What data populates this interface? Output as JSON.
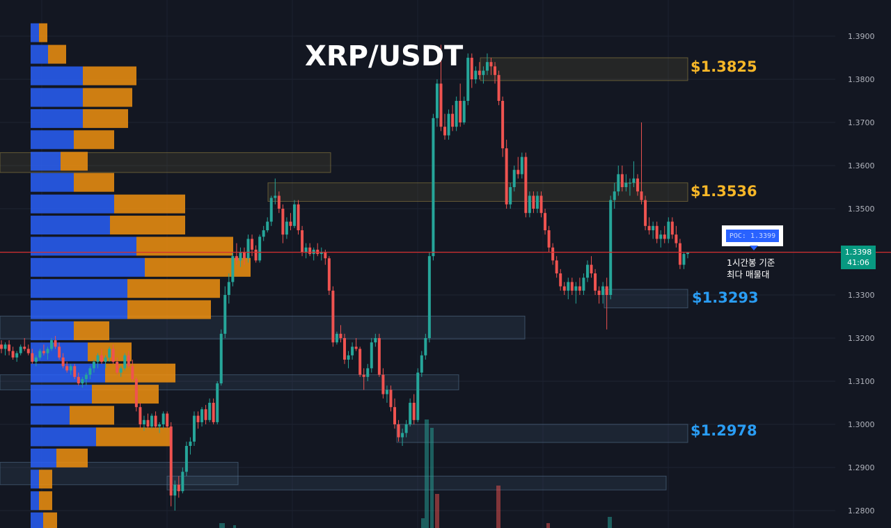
{
  "title": "XRP/USDT",
  "colors": {
    "background": "#131722",
    "bull": "#26a69a",
    "bear": "#ef5350",
    "poc_line": "#d32f2f",
    "vp_buy": "#2962ff",
    "vp_sell": "#f0900f",
    "gold_label": "#f7b728",
    "blue_label": "#2a9df4"
  },
  "level_labels": [
    {
      "text": "$1.3825",
      "price": 1.3825,
      "color": "gold"
    },
    {
      "text": "$1.3536",
      "price": 1.3536,
      "color": "gold"
    },
    {
      "text": "$1.3293",
      "price": 1.3293,
      "color": "blue"
    },
    {
      "text": "$1.2978",
      "price": 1.2978,
      "color": "blue"
    }
  ],
  "poc": {
    "label": "POC: 1.3399",
    "note_line1": "1시간봉 기준",
    "note_line2": "최다 매물대"
  },
  "current_price": {
    "price": "1.3398",
    "countdown": "41:06"
  },
  "chart_data": {
    "type": "candlestick",
    "title": "XRP/USDT",
    "ylim": [
      1.2785,
      1.3935
    ],
    "y_ticks": [
      "1.2800",
      "1.2900",
      "1.3000",
      "1.3100",
      "1.3200",
      "1.3300",
      "1.3400",
      "1.3500",
      "1.3600",
      "1.3700",
      "1.3800",
      "1.3900"
    ],
    "poc_price": 1.3399,
    "last_price": 1.3398,
    "candles": [
      [
        1.3185,
        1.3195,
        1.3165,
        1.3175
      ],
      [
        1.3175,
        1.319,
        1.316,
        1.3185
      ],
      [
        1.3185,
        1.3195,
        1.316,
        1.317
      ],
      [
        1.317,
        1.318,
        1.315,
        1.3155
      ],
      [
        1.3155,
        1.317,
        1.3145,
        1.3165
      ],
      [
        1.3165,
        1.3185,
        1.316,
        1.318
      ],
      [
        1.318,
        1.32,
        1.317,
        1.3175
      ],
      [
        1.3175,
        1.3185,
        1.316,
        1.3165
      ],
      [
        1.3165,
        1.3175,
        1.314,
        1.3145
      ],
      [
        1.3145,
        1.316,
        1.3135,
        1.3155
      ],
      [
        1.3155,
        1.3175,
        1.315,
        1.317
      ],
      [
        1.317,
        1.3185,
        1.316,
        1.3165
      ],
      [
        1.3165,
        1.318,
        1.315,
        1.3175
      ],
      [
        1.3175,
        1.32,
        1.317,
        1.3195
      ],
      [
        1.3195,
        1.3205,
        1.3175,
        1.318
      ],
      [
        1.318,
        1.319,
        1.315,
        1.3155
      ],
      [
        1.3155,
        1.3165,
        1.313,
        1.3135
      ],
      [
        1.3135,
        1.3145,
        1.312,
        1.3125
      ],
      [
        1.3125,
        1.314,
        1.3115,
        1.3135
      ],
      [
        1.3135,
        1.314,
        1.3105,
        1.311
      ],
      [
        1.311,
        1.312,
        1.309,
        1.3095
      ],
      [
        1.3095,
        1.311,
        1.3085,
        1.3105
      ],
      [
        1.3105,
        1.312,
        1.309,
        1.3115
      ],
      [
        1.3115,
        1.3135,
        1.3105,
        1.313
      ],
      [
        1.313,
        1.315,
        1.312,
        1.3145
      ],
      [
        1.3145,
        1.3165,
        1.313,
        1.316
      ],
      [
        1.316,
        1.3175,
        1.314,
        1.3145
      ],
      [
        1.3145,
        1.316,
        1.313,
        1.3155
      ],
      [
        1.3155,
        1.318,
        1.3145,
        1.3175
      ],
      [
        1.3175,
        1.3185,
        1.314,
        1.3145
      ],
      [
        1.3145,
        1.3155,
        1.3115,
        1.312
      ],
      [
        1.312,
        1.3135,
        1.311,
        1.313
      ],
      [
        1.313,
        1.3165,
        1.3125,
        1.316
      ],
      [
        1.316,
        1.317,
        1.313,
        1.3135
      ],
      [
        1.3135,
        1.315,
        1.31,
        1.3105
      ],
      [
        1.3105,
        1.311,
        1.303,
        1.304
      ],
      [
        1.304,
        1.305,
        1.299,
        1.3
      ],
      [
        1.3,
        1.302,
        1.2985,
        1.301
      ],
      [
        1.301,
        1.3025,
        1.299,
        1.2995
      ],
      [
        1.2995,
        1.3025,
        1.299,
        1.302
      ],
      [
        1.302,
        1.303,
        1.299,
        1.2995
      ],
      [
        1.2995,
        1.3005,
        1.298,
        1.3
      ],
      [
        1.3,
        1.303,
        1.299,
        1.3025
      ],
      [
        1.3025,
        1.303,
        1.299,
        1.2995
      ],
      [
        1.2995,
        1.3005,
        1.281,
        1.2835
      ],
      [
        1.2835,
        1.287,
        1.28,
        1.286
      ],
      [
        1.286,
        1.288,
        1.283,
        1.2845
      ],
      [
        1.2845,
        1.29,
        1.284,
        1.289
      ],
      [
        1.289,
        1.296,
        1.288,
        1.295
      ],
      [
        1.295,
        1.297,
        1.293,
        1.296
      ],
      [
        1.296,
        1.303,
        1.295,
        1.302
      ],
      [
        1.302,
        1.303,
        1.299,
        1.3005
      ],
      [
        1.3005,
        1.304,
        1.2995,
        1.3035
      ],
      [
        1.3035,
        1.3045,
        1.3,
        1.301
      ],
      [
        1.301,
        1.306,
        1.3005,
        1.305
      ],
      [
        1.305,
        1.306,
        1.3,
        1.3005
      ],
      [
        1.3005,
        1.31,
        1.3,
        1.3095
      ],
      [
        1.3095,
        1.322,
        1.309,
        1.321
      ],
      [
        1.321,
        1.332,
        1.32,
        1.33
      ],
      [
        1.33,
        1.335,
        1.328,
        1.333
      ],
      [
        1.333,
        1.34,
        1.332,
        1.339
      ],
      [
        1.339,
        1.342,
        1.337,
        1.338
      ],
      [
        1.338,
        1.341,
        1.3365,
        1.34
      ],
      [
        1.34,
        1.341,
        1.337,
        1.3385
      ],
      [
        1.3385,
        1.344,
        1.3375,
        1.343
      ],
      [
        1.343,
        1.344,
        1.339,
        1.3405
      ],
      [
        1.3405,
        1.3415,
        1.3375,
        1.338
      ],
      [
        1.338,
        1.344,
        1.3375,
        1.3435
      ],
      [
        1.3435,
        1.346,
        1.3425,
        1.345
      ],
      [
        1.345,
        1.348,
        1.3445,
        1.347
      ],
      [
        1.347,
        1.353,
        1.346,
        1.3525
      ],
      [
        1.3525,
        1.357,
        1.351,
        1.353
      ],
      [
        1.353,
        1.354,
        1.349,
        1.35
      ],
      [
        1.35,
        1.351,
        1.342,
        1.344
      ],
      [
        1.344,
        1.348,
        1.343,
        1.347
      ],
      [
        1.347,
        1.349,
        1.345,
        1.346
      ],
      [
        1.346,
        1.352,
        1.3455,
        1.351
      ],
      [
        1.351,
        1.352,
        1.344,
        1.345
      ],
      [
        1.345,
        1.346,
        1.339,
        1.34
      ],
      [
        1.34,
        1.342,
        1.3385,
        1.341
      ],
      [
        1.341,
        1.342,
        1.339,
        1.3395
      ],
      [
        1.3395,
        1.341,
        1.338,
        1.3405
      ],
      [
        1.3405,
        1.342,
        1.339,
        1.3395
      ],
      [
        1.3395,
        1.341,
        1.338,
        1.34
      ],
      [
        1.34,
        1.3405,
        1.337,
        1.3385
      ],
      [
        1.3385,
        1.339,
        1.33,
        1.331
      ],
      [
        1.331,
        1.332,
        1.318,
        1.319
      ],
      [
        1.319,
        1.3215,
        1.3185,
        1.321
      ],
      [
        1.321,
        1.323,
        1.319,
        1.32
      ],
      [
        1.32,
        1.321,
        1.314,
        1.315
      ],
      [
        1.315,
        1.317,
        1.313,
        1.316
      ],
      [
        1.316,
        1.319,
        1.315,
        1.318
      ],
      [
        1.318,
        1.32,
        1.317,
        1.3175
      ],
      [
        1.3175,
        1.318,
        1.311,
        1.3115
      ],
      [
        1.3115,
        1.313,
        1.308,
        1.311
      ],
      [
        1.311,
        1.314,
        1.31,
        1.313
      ],
      [
        1.313,
        1.32,
        1.312,
        1.319
      ],
      [
        1.319,
        1.321,
        1.318,
        1.32
      ],
      [
        1.32,
        1.321,
        1.311,
        1.3115
      ],
      [
        1.3115,
        1.313,
        1.306,
        1.307
      ],
      [
        1.307,
        1.309,
        1.305,
        1.308
      ],
      [
        1.308,
        1.309,
        1.303,
        1.304
      ],
      [
        1.304,
        1.306,
        1.299,
        1.3
      ],
      [
        1.3,
        1.301,
        1.296,
        1.297
      ],
      [
        1.297,
        1.299,
        1.295,
        1.298
      ],
      [
        1.298,
        1.301,
        1.297,
        1.3
      ],
      [
        1.3,
        1.306,
        1.2995,
        1.305
      ],
      [
        1.305,
        1.307,
        1.3,
        1.301
      ],
      [
        1.301,
        1.313,
        1.3005,
        1.312
      ],
      [
        1.312,
        1.317,
        1.311,
        1.316
      ],
      [
        1.316,
        1.321,
        1.315,
        1.32
      ],
      [
        1.32,
        1.34,
        1.319,
        1.339
      ],
      [
        1.339,
        1.372,
        1.338,
        1.371
      ],
      [
        1.371,
        1.38,
        1.369,
        1.379
      ],
      [
        1.379,
        1.388,
        1.368,
        1.369
      ],
      [
        1.369,
        1.372,
        1.366,
        1.367
      ],
      [
        1.367,
        1.373,
        1.366,
        1.372
      ],
      [
        1.372,
        1.374,
        1.368,
        1.369
      ],
      [
        1.369,
        1.376,
        1.368,
        1.375
      ],
      [
        1.375,
        1.379,
        1.369,
        1.37
      ],
      [
        1.37,
        1.376,
        1.3695,
        1.375
      ],
      [
        1.375,
        1.386,
        1.374,
        1.385
      ],
      [
        1.385,
        1.386,
        1.378,
        1.38
      ],
      [
        1.38,
        1.383,
        1.379,
        1.382
      ],
      [
        1.382,
        1.384,
        1.38,
        1.381
      ],
      [
        1.381,
        1.383,
        1.379,
        1.382
      ],
      [
        1.382,
        1.386,
        1.381,
        1.384
      ],
      [
        1.384,
        1.385,
        1.381,
        1.383
      ],
      [
        1.383,
        1.384,
        1.379,
        1.381
      ],
      [
        1.381,
        1.382,
        1.374,
        1.375
      ],
      [
        1.375,
        1.376,
        1.362,
        1.364
      ],
      [
        1.364,
        1.366,
        1.35,
        1.351
      ],
      [
        1.351,
        1.356,
        1.35,
        1.355
      ],
      [
        1.355,
        1.36,
        1.354,
        1.359
      ],
      [
        1.359,
        1.362,
        1.357,
        1.358
      ],
      [
        1.358,
        1.363,
        1.357,
        1.362
      ],
      [
        1.362,
        1.363,
        1.348,
        1.349
      ],
      [
        1.349,
        1.354,
        1.348,
        1.353
      ],
      [
        1.353,
        1.354,
        1.349,
        1.35
      ],
      [
        1.35,
        1.354,
        1.349,
        1.353
      ],
      [
        1.353,
        1.354,
        1.348,
        1.349
      ],
      [
        1.349,
        1.35,
        1.344,
        1.345
      ],
      [
        1.345,
        1.346,
        1.34,
        1.341
      ],
      [
        1.341,
        1.342,
        1.337,
        1.338
      ],
      [
        1.338,
        1.339,
        1.334,
        1.335
      ],
      [
        1.335,
        1.336,
        1.331,
        1.332
      ],
      [
        1.332,
        1.333,
        1.33,
        1.331
      ],
      [
        1.331,
        1.334,
        1.329,
        1.333
      ],
      [
        1.333,
        1.334,
        1.33,
        1.331
      ],
      [
        1.331,
        1.333,
        1.328,
        1.332
      ],
      [
        1.332,
        1.334,
        1.33,
        1.331
      ],
      [
        1.331,
        1.335,
        1.33,
        1.334
      ],
      [
        1.334,
        1.338,
        1.333,
        1.337
      ],
      [
        1.337,
        1.339,
        1.334,
        1.335
      ],
      [
        1.335,
        1.336,
        1.33,
        1.331
      ],
      [
        1.331,
        1.332,
        1.328,
        1.33
      ],
      [
        1.33,
        1.333,
        1.328,
        1.332
      ],
      [
        1.332,
        1.334,
        1.322,
        1.33
      ],
      [
        1.33,
        1.353,
        1.329,
        1.352
      ],
      [
        1.352,
        1.356,
        1.35,
        1.354
      ],
      [
        1.354,
        1.36,
        1.353,
        1.358
      ],
      [
        1.358,
        1.36,
        1.354,
        1.355
      ],
      [
        1.355,
        1.358,
        1.354,
        1.356
      ],
      [
        1.356,
        1.357,
        1.353,
        1.356
      ],
      [
        1.356,
        1.361,
        1.355,
        1.357
      ],
      [
        1.357,
        1.358,
        1.353,
        1.354
      ],
      [
        1.354,
        1.37,
        1.351,
        1.352
      ],
      [
        1.352,
        1.353,
        1.345,
        1.346
      ],
      [
        1.346,
        1.348,
        1.344,
        1.345
      ],
      [
        1.345,
        1.347,
        1.343,
        1.346
      ],
      [
        1.346,
        1.347,
        1.342,
        1.343
      ],
      [
        1.343,
        1.345,
        1.341,
        1.344
      ],
      [
        1.344,
        1.346,
        1.342,
        1.343
      ],
      [
        1.343,
        1.348,
        1.342,
        1.347
      ],
      [
        1.347,
        1.348,
        1.343,
        1.344
      ],
      [
        1.344,
        1.346,
        1.341,
        1.342
      ],
      [
        1.342,
        1.343,
        1.336,
        1.337
      ],
      [
        1.337,
        1.34,
        1.336,
        1.3395
      ],
      [
        1.3395,
        1.34,
        1.3385,
        1.3398
      ]
    ],
    "volume_profile": [
      {
        "price": 1.3908,
        "buy": 12,
        "sell": 12
      },
      {
        "price": 1.3858,
        "buy": 25,
        "sell": 26
      },
      {
        "price": 1.3808,
        "buy": 75,
        "sell": 77
      },
      {
        "price": 1.3758,
        "buy": 75,
        "sell": 71
      },
      {
        "price": 1.3709,
        "buy": 75,
        "sell": 65
      },
      {
        "price": 1.366,
        "buy": 62,
        "sell": 58
      },
      {
        "price": 1.361,
        "buy": 43,
        "sell": 39
      },
      {
        "price": 1.3561,
        "buy": 62,
        "sell": 58
      },
      {
        "price": 1.3511,
        "buy": 120,
        "sell": 102
      },
      {
        "price": 1.3462,
        "buy": 114,
        "sell": 108
      },
      {
        "price": 1.3413,
        "buy": 152,
        "sell": 139
      },
      {
        "price": 1.3364,
        "buy": 164,
        "sell": 152
      },
      {
        "price": 1.3315,
        "buy": 139,
        "sell": 133
      },
      {
        "price": 1.3266,
        "buy": 139,
        "sell": 120
      },
      {
        "price": 1.3217,
        "buy": 62,
        "sell": 51
      },
      {
        "price": 1.3168,
        "buy": 82,
        "sell": 63
      },
      {
        "price": 1.3119,
        "buy": 107,
        "sell": 101
      },
      {
        "price": 1.307,
        "buy": 88,
        "sell": 96
      },
      {
        "price": 1.3021,
        "buy": 56,
        "sell": 64
      },
      {
        "price": 1.2971,
        "buy": 94,
        "sell": 108
      },
      {
        "price": 1.2922,
        "buy": 37,
        "sell": 45
      },
      {
        "price": 1.2873,
        "buy": 12,
        "sell": 19
      },
      {
        "price": 1.2823,
        "buy": 12,
        "sell": 19
      },
      {
        "price": 1.2774,
        "buy": 18,
        "sell": 20
      }
    ],
    "zones": [
      {
        "top": 1.385,
        "bottom": 1.3797,
        "kind": "gold"
      },
      {
        "top": 1.363,
        "bottom": 1.3584,
        "kind": "gold"
      },
      {
        "top": 1.356,
        "bottom": 1.3517,
        "kind": "gold"
      },
      {
        "top": 1.3313,
        "bottom": 1.327,
        "kind": "blue"
      },
      {
        "top": 1.3251,
        "bottom": 1.3198,
        "kind": "blue"
      },
      {
        "top": 1.3115,
        "bottom": 1.308,
        "kind": "blue"
      },
      {
        "top": 1.3,
        "bottom": 1.2958,
        "kind": "blue"
      },
      {
        "top": 1.2912,
        "bottom": 1.286,
        "kind": "blue"
      },
      {
        "top": 1.288,
        "bottom": 1.2848,
        "kind": "blue"
      }
    ]
  }
}
